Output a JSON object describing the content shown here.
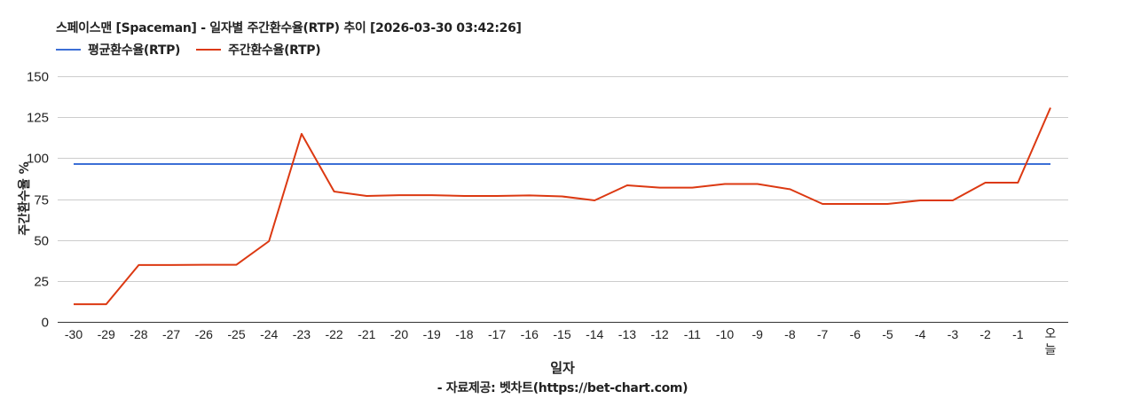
{
  "title": "스페이스맨 [Spaceman] - 일자별 주간환수율(RTP) 추이 [2026-03-30 03:42:26]",
  "legend": [
    {
      "label": "평균환수율(RTP)",
      "color": "#3c6fd6"
    },
    {
      "label": "주간환수율(RTP)",
      "color": "#dc3912"
    }
  ],
  "x_axis_title": "일자",
  "y_axis_title": "주간환수율 %",
  "source": "- 자료제공: 벳차트(https://bet-chart.com)",
  "chart_data": {
    "type": "line",
    "title": "스페이스맨 [Spaceman] - 일자별 주간환수율(RTP) 추이 [2026-03-30 03:42:26]",
    "xlabel": "일자",
    "ylabel": "주간환수율 %",
    "ylim": [
      0,
      150
    ],
    "yticks": [
      0,
      25,
      50,
      75,
      100,
      125,
      150
    ],
    "grid": true,
    "legend_position": "top-left",
    "categories": [
      "-30",
      "-29",
      "-28",
      "-27",
      "-26",
      "-25",
      "-24",
      "-23",
      "-22",
      "-21",
      "-20",
      "-19",
      "-18",
      "-17",
      "-16",
      "-15",
      "-14",
      "-13",
      "-12",
      "-11",
      "-10",
      "-9",
      "-8",
      "-7",
      "-6",
      "-5",
      "-4",
      "-3",
      "-2",
      "-1",
      "오늘"
    ],
    "series": [
      {
        "name": "평균환수율(RTP)",
        "color": "#3c6fd6",
        "values": [
          96.4,
          96.4,
          96.4,
          96.4,
          96.4,
          96.4,
          96.4,
          96.4,
          96.4,
          96.4,
          96.4,
          96.4,
          96.4,
          96.4,
          96.4,
          96.4,
          96.4,
          96.4,
          96.4,
          96.4,
          96.4,
          96.4,
          96.4,
          96.4,
          96.4,
          96.4,
          96.4,
          96.4,
          96.4,
          96.4,
          96.4
        ]
      },
      {
        "name": "주간환수율(RTP)",
        "color": "#dc3912",
        "values": [
          10.8,
          10.8,
          34.7,
          34.7,
          34.9,
          34.9,
          49.3,
          114.8,
          79.6,
          76.9,
          77.4,
          77.4,
          76.9,
          76.9,
          77.2,
          76.6,
          74.2,
          83.4,
          82.0,
          82.0,
          84.2,
          84.2,
          81.0,
          72.0,
          72.0,
          72.0,
          74.2,
          74.2,
          85.0,
          85.0,
          130.8
        ]
      }
    ]
  }
}
